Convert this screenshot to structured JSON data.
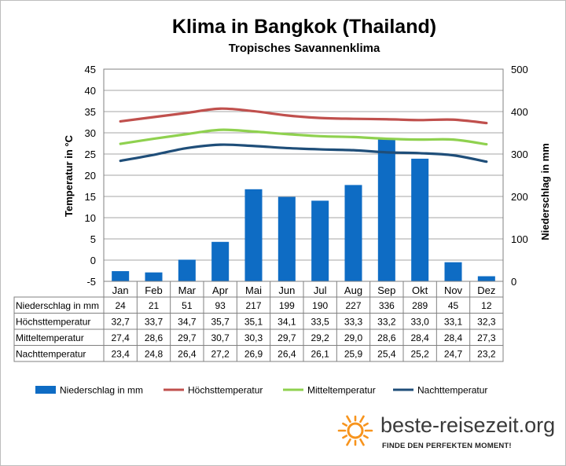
{
  "colors": {
    "bar": "#0e6cc4",
    "hoechst": "#c0504d",
    "mittel": "#8fd14f",
    "nacht": "#1f4e79",
    "sun": "#f7941d"
  },
  "brand": {
    "name": "beste-reisezeit.org",
    "tagline": "FINDE DEN PERFEKTEN MOMENT!",
    "logo_icon": "sun-logo-icon"
  },
  "chart_data": {
    "type": "bar+line",
    "title": "Klima in Bangkok (Thailand)",
    "subtitle": "Tropisches Savannenklima",
    "ylabel_left": "Temperatur in °C",
    "ylabel_right": "Niederschlag in mm",
    "ylim_left": [
      -5,
      45
    ],
    "yticks_left": [
      "45",
      "40",
      "35",
      "30",
      "25",
      "20",
      "15",
      "10",
      "5",
      "0",
      "-5"
    ],
    "ylim_right": [
      0,
      500
    ],
    "yticks_right": [
      "500",
      "400",
      "300",
      "200",
      "100",
      "0"
    ],
    "grid": "horizontal",
    "legend_position": "bottom",
    "categories": [
      "Jan",
      "Feb",
      "Mar",
      "Apr",
      "Mai",
      "Jun",
      "Jul",
      "Aug",
      "Sep",
      "Okt",
      "Nov",
      "Dez"
    ],
    "series": [
      {
        "name": "Niederschlag in mm",
        "type": "bar",
        "axis": "right",
        "values": [
          24,
          21,
          51,
          93,
          217,
          199,
          190,
          227,
          336,
          289,
          45,
          12
        ],
        "labels": [
          "24",
          "21",
          "51",
          "93",
          "217",
          "199",
          "190",
          "227",
          "336",
          "289",
          "45",
          "12"
        ]
      },
      {
        "name": "Höchsttemperatur",
        "type": "line",
        "axis": "left",
        "values": [
          32.7,
          33.7,
          34.7,
          35.7,
          35.1,
          34.1,
          33.5,
          33.3,
          33.2,
          33.0,
          33.1,
          32.3
        ],
        "labels": [
          "32,7",
          "33,7",
          "34,7",
          "35,7",
          "35,1",
          "34,1",
          "33,5",
          "33,3",
          "33,2",
          "33,0",
          "33,1",
          "32,3"
        ]
      },
      {
        "name": "Mitteltemperatur",
        "type": "line",
        "axis": "left",
        "values": [
          27.4,
          28.6,
          29.7,
          30.7,
          30.3,
          29.7,
          29.2,
          29.0,
          28.6,
          28.4,
          28.4,
          27.3
        ],
        "labels": [
          "27,4",
          "28,6",
          "29,7",
          "30,7",
          "30,3",
          "29,7",
          "29,2",
          "29,0",
          "28,6",
          "28,4",
          "28,4",
          "27,3"
        ]
      },
      {
        "name": "Nachttemperatur",
        "type": "line",
        "axis": "left",
        "values": [
          23.4,
          24.8,
          26.4,
          27.2,
          26.9,
          26.4,
          26.1,
          25.9,
          25.4,
          25.2,
          24.7,
          23.2
        ],
        "labels": [
          "23,4",
          "24,8",
          "26,4",
          "27,2",
          "26,9",
          "26,4",
          "26,1",
          "25,9",
          "25,4",
          "25,2",
          "24,7",
          "23,2"
        ]
      }
    ]
  }
}
